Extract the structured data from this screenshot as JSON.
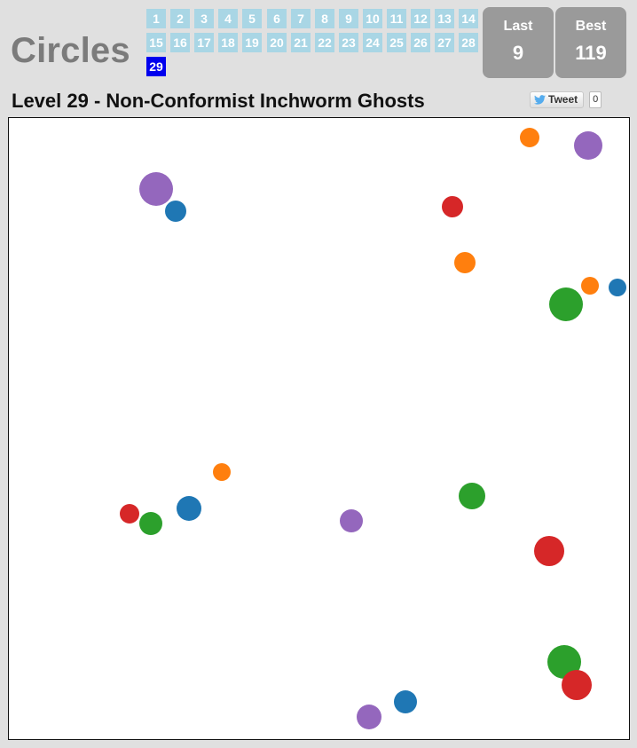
{
  "app": {
    "title": "Circles"
  },
  "levels": {
    "items": [
      "1",
      "2",
      "3",
      "4",
      "5",
      "6",
      "7",
      "8",
      "9",
      "10",
      "11",
      "12",
      "13",
      "14",
      "15",
      "16",
      "17",
      "18",
      "19",
      "20",
      "21",
      "22",
      "23",
      "24",
      "25",
      "26",
      "27",
      "28",
      "29"
    ],
    "current": "29"
  },
  "scores": {
    "last_label": "Last",
    "last_value": "9",
    "best_label": "Best",
    "best_value": "119"
  },
  "level_title": "Level 29 - Non-Conformist Inchworm Ghosts",
  "share": {
    "tweet_label": "Tweet",
    "tweet_count": "0",
    "icon": "twitter-bird-icon"
  },
  "colors": {
    "blue": "#1f77b4",
    "orange": "#ff7f0e",
    "green": "#2ca02c",
    "red": "#d62728",
    "purple": "#9467bd",
    "level_button": "#a9d6e5",
    "level_button_active": "#0000ee",
    "score_box": "#9a9a9a"
  },
  "board": {
    "circles": [
      {
        "color": "purple"
      },
      {
        "color": "orange"
      },
      {
        "color": "purple"
      },
      {
        "color": "blue"
      },
      {
        "color": "red"
      },
      {
        "color": "orange"
      },
      {
        "color": "orange"
      },
      {
        "color": "blue"
      },
      {
        "color": "green"
      },
      {
        "color": "orange"
      },
      {
        "color": "green"
      },
      {
        "color": "red"
      },
      {
        "color": "blue"
      },
      {
        "color": "green"
      },
      {
        "color": "purple"
      },
      {
        "color": "red"
      },
      {
        "color": "green"
      },
      {
        "color": "red"
      },
      {
        "color": "blue"
      },
      {
        "color": "purple"
      }
    ]
  }
}
